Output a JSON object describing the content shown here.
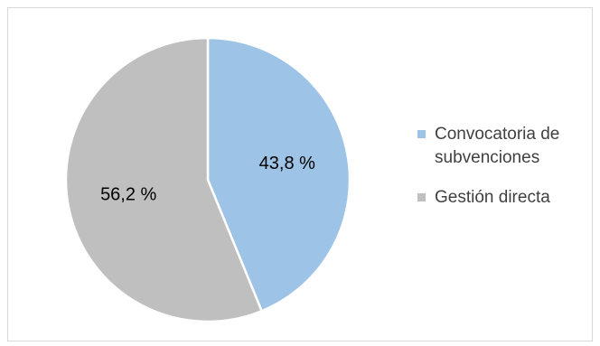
{
  "chart_data": {
    "type": "pie",
    "slices": [
      {
        "label": "Convocatoria de subvenciones",
        "value": 43.8,
        "value_label": "43,8 %",
        "color": "#9dc3e6"
      },
      {
        "label": "Gestión directa",
        "value": 56.2,
        "value_label": "56,2 %",
        "color": "#bfbfbf"
      }
    ],
    "start_angle": "12 o'clock",
    "direction": "clockwise",
    "legend_position": "right",
    "border_color": "#d9d9d9",
    "slice_border_color": "#ffffff"
  }
}
